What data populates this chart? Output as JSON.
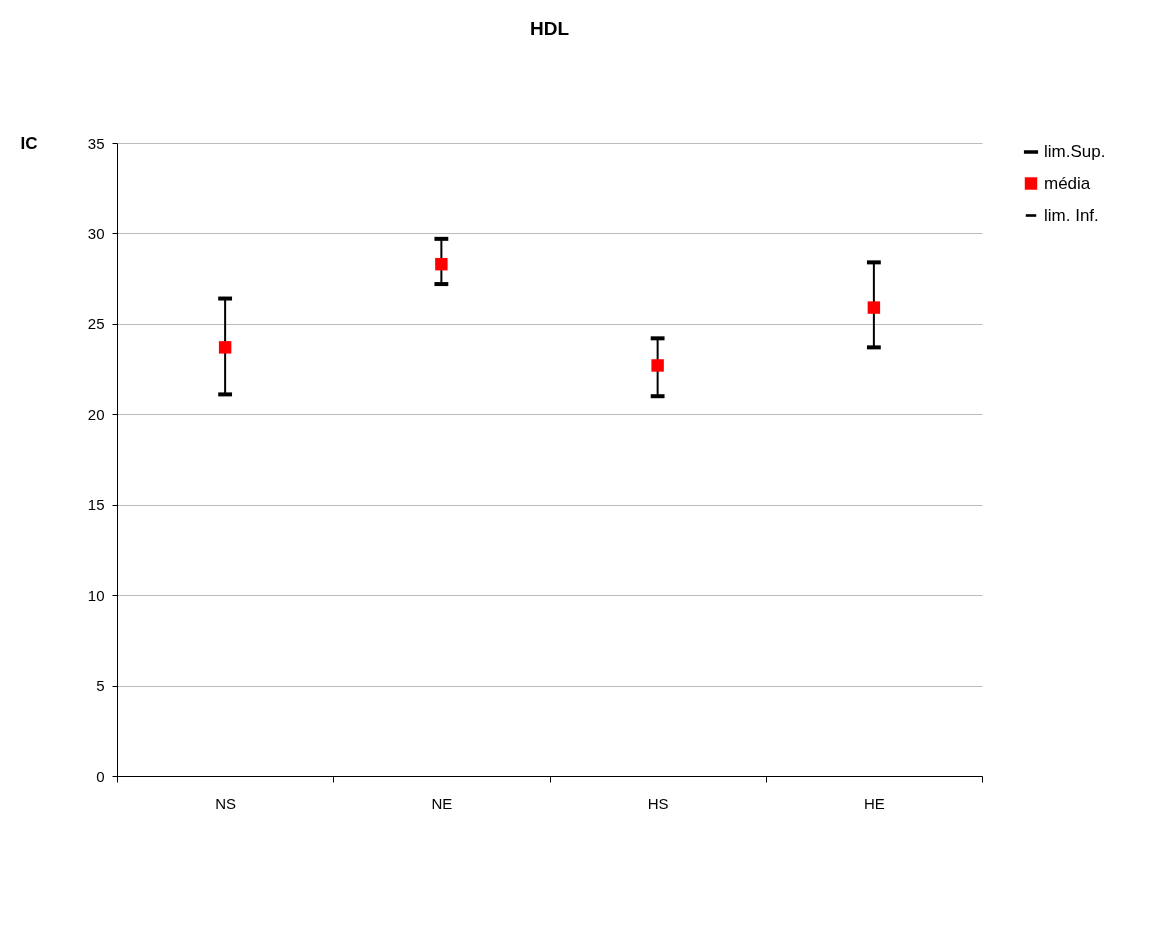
{
  "chart_data": {
    "type": "scatter",
    "title": "HDL",
    "ylabel": "IC",
    "categories": [
      "NS",
      "NE",
      "HS",
      "HE"
    ],
    "series": [
      {
        "name": "lim.Sup.",
        "color": "#000000",
        "values": [
          null,
          null,
          null,
          null
        ]
      },
      {
        "name": "média",
        "color": "#ff0000",
        "marker": "square",
        "values": [
          23.7,
          28.3,
          22.7,
          25.9
        ],
        "errors": [
          [
            21.1,
            26.4
          ],
          [
            27.2,
            29.7
          ],
          [
            21.0,
            24.2
          ],
          [
            23.7,
            28.4
          ]
        ]
      },
      {
        "name": "lim. Inf.",
        "color": "#000000",
        "values": [
          null,
          null,
          null,
          null
        ]
      }
    ],
    "ylim": [
      0,
      35
    ],
    "yticks": [
      0,
      5,
      10,
      15,
      20,
      25,
      30,
      35
    ],
    "grid": "y",
    "legend": "right"
  }
}
